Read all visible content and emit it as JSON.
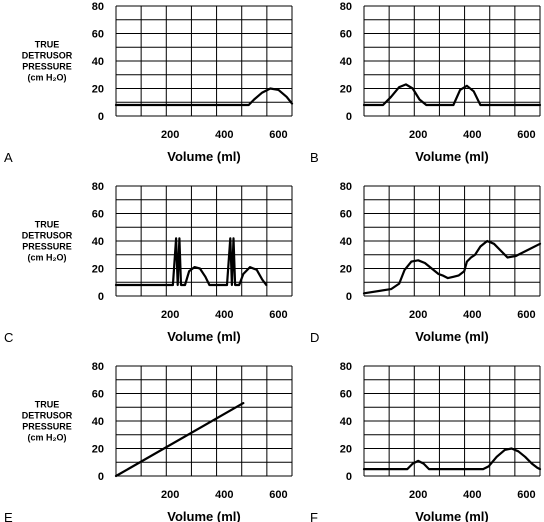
{
  "figure": {
    "ylabel_lines": [
      "TRUE",
      "DETRUSOR",
      "PRESSURE",
      "(cm H₂O)"
    ]
  },
  "colors": {
    "grid": "#000000",
    "curve": "#000000",
    "background": "#ffffff"
  },
  "chart_data": [
    {
      "type": "line",
      "panel": "A",
      "xlabel": "Volume (ml)",
      "ylabel": "TRUE DETRUSOR PRESSURE (cm H₂O)",
      "xlim": [
        0,
        650
      ],
      "ylim": [
        0,
        80
      ],
      "xticks": [
        200,
        400,
        600
      ],
      "yticks": [
        0,
        20,
        40,
        60,
        80
      ],
      "grid": true,
      "series": [
        {
          "x": [
            0,
            490,
            510,
            540,
            570,
            600,
            630,
            650
          ],
          "y": [
            8,
            8,
            12,
            17,
            20,
            19,
            14,
            9
          ]
        }
      ]
    },
    {
      "type": "line",
      "panel": "B",
      "xlabel": "Volume (ml)",
      "ylabel": "",
      "xlim": [
        0,
        650
      ],
      "ylim": [
        0,
        80
      ],
      "xticks": [
        200,
        400,
        600
      ],
      "yticks": [
        0,
        20,
        40,
        60,
        80
      ],
      "grid": true,
      "series": [
        {
          "x": [
            0,
            70,
            100,
            130,
            155,
            180,
            205,
            230,
            330,
            355,
            380,
            405,
            430,
            650
          ],
          "y": [
            8,
            8,
            14,
            21,
            23,
            20,
            12,
            8,
            8,
            19,
            22,
            18,
            8,
            8
          ]
        }
      ]
    },
    {
      "type": "line",
      "panel": "C",
      "xlabel": "Volume (ml)",
      "ylabel": "TRUE DETRUSOR PRESSURE (cm H₂O)",
      "xlim": [
        0,
        650
      ],
      "ylim": [
        0,
        80
      ],
      "xticks": [
        200,
        400,
        600
      ],
      "yticks": [
        0,
        20,
        40,
        60,
        80
      ],
      "grid": true,
      "series": [
        {
          "x": [
            0,
            210,
            222,
            228,
            234,
            240,
            246,
            255,
            270,
            290,
            310,
            330,
            345,
            395,
            410,
            422,
            428,
            434,
            440,
            446,
            455,
            470,
            495,
            520,
            540,
            555
          ],
          "y": [
            8,
            8,
            42,
            8,
            42,
            8,
            8,
            8,
            18,
            21,
            20,
            14,
            8,
            8,
            8,
            42,
            8,
            42,
            8,
            8,
            8,
            16,
            21,
            19,
            12,
            8
          ]
        }
      ]
    },
    {
      "type": "line",
      "panel": "D",
      "xlabel": "Volume (ml)",
      "ylabel": "",
      "xlim": [
        0,
        650
      ],
      "ylim": [
        0,
        80
      ],
      "xticks": [
        200,
        400,
        600
      ],
      "yticks": [
        0,
        20,
        40,
        60,
        80
      ],
      "grid": true,
      "series": [
        {
          "x": [
            0,
            100,
            130,
            150,
            175,
            200,
            225,
            250,
            275,
            290,
            310,
            330,
            350,
            370,
            380,
            395,
            410,
            430,
            455,
            480,
            505,
            530,
            560,
            600,
            650
          ],
          "y": [
            2,
            5,
            9,
            19,
            25,
            26,
            24,
            20,
            16,
            15,
            13,
            14,
            15,
            18,
            25,
            28,
            30,
            36,
            40,
            38,
            33,
            28,
            29,
            33,
            38
          ]
        }
      ]
    },
    {
      "type": "line",
      "panel": "E",
      "xlabel": "Volume (ml)",
      "ylabel": "TRUE DETRUSOR PRESSURE (cm H₂O)",
      "xlim": [
        0,
        650
      ],
      "ylim": [
        0,
        80
      ],
      "xticks": [
        200,
        400,
        600
      ],
      "yticks": [
        0,
        20,
        40,
        60,
        80
      ],
      "grid": true,
      "series": [
        {
          "x": [
            0,
            470
          ],
          "y": [
            0,
            53
          ]
        }
      ]
    },
    {
      "type": "line",
      "panel": "F",
      "xlabel": "Volume (ml)",
      "ylabel": "",
      "xlim": [
        0,
        650
      ],
      "ylim": [
        0,
        80
      ],
      "xticks": [
        200,
        400,
        600
      ],
      "yticks": [
        0,
        20,
        40,
        60,
        80
      ],
      "grid": true,
      "series": [
        {
          "x": [
            0,
            160,
            180,
            200,
            220,
            240,
            440,
            460,
            490,
            520,
            545,
            570,
            595,
            620,
            640,
            650
          ],
          "y": [
            5,
            5,
            9,
            11,
            9,
            5,
            5,
            7,
            14,
            19,
            20,
            18,
            14,
            9,
            6,
            5
          ]
        }
      ]
    }
  ]
}
